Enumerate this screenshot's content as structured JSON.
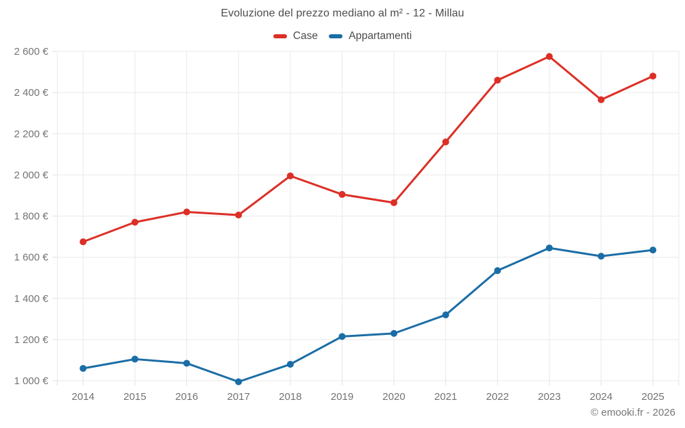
{
  "title": "Evoluzione del prezzo mediano al m² - 12 - Millau",
  "attribution": "© emooki.fr - 2026",
  "legend": {
    "items": [
      {
        "label": "Case",
        "color": "#dc2f26"
      },
      {
        "label": "Appartamenti",
        "color": "#1a6da6"
      }
    ]
  },
  "chart_data": {
    "type": "line",
    "title": "Evoluzione del prezzo mediano al m² - 12 - Millau",
    "x": [
      2014,
      2015,
      2016,
      2017,
      2018,
      2019,
      2020,
      2021,
      2022,
      2023,
      2024,
      2025
    ],
    "series": [
      {
        "name": "Case",
        "color": "#dc2f26",
        "values": [
          1675,
          1770,
          1820,
          1805,
          1995,
          1905,
          1865,
          2160,
          2460,
          2575,
          2365,
          2480
        ]
      },
      {
        "name": "Appartamenti",
        "color": "#1a6da6",
        "values": [
          1060,
          1105,
          1085,
          995,
          1080,
          1215,
          1230,
          1320,
          1535,
          1645,
          1605,
          1635
        ]
      }
    ],
    "ylim": [
      1000,
      2600
    ],
    "ytick_step": 200,
    "ytick_values": [
      1000,
      1200,
      1400,
      1600,
      1800,
      2000,
      2200,
      2400,
      2600
    ],
    "ytick_suffix": " €",
    "xlabel": "",
    "ylabel": "",
    "grid": true,
    "legend_position": "top",
    "colors": {
      "grid": "#e9e9e9",
      "tick": "#e0e0e0",
      "axis_label": "#737373",
      "title": "#4c4c4c"
    }
  }
}
